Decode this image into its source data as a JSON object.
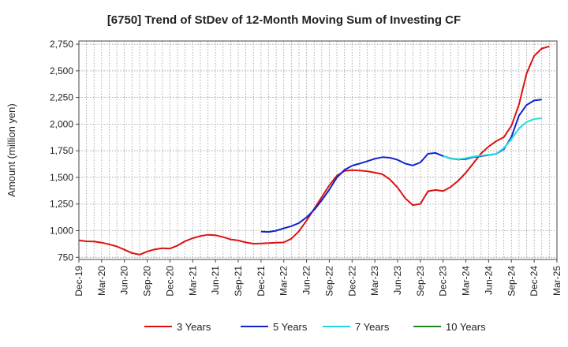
{
  "chart_data": {
    "type": "line",
    "title": "[6750]  Trend of StDev of 12-Month Moving Sum of Investing CF",
    "xlabel": "",
    "ylabel": "Amount (million yen)",
    "ylim": [
      730,
      2780
    ],
    "yticks": [
      750,
      1000,
      1250,
      1500,
      1750,
      2000,
      2250,
      2500,
      2750
    ],
    "ytick_labels": [
      "750",
      "1,000",
      "1,250",
      "1,500",
      "1,750",
      "2,000",
      "2,250",
      "2,500",
      "2,750"
    ],
    "xticks": [
      "Dec-19",
      "Mar-20",
      "Jun-20",
      "Sep-20",
      "Dec-20",
      "Mar-21",
      "Jun-21",
      "Sep-21",
      "Dec-21",
      "Mar-22",
      "Jun-22",
      "Sep-22",
      "Dec-22",
      "Mar-23",
      "Jun-23",
      "Sep-23",
      "Dec-23",
      "Mar-24",
      "Jun-24",
      "Sep-24",
      "Dec-24",
      "Mar-25"
    ],
    "grid": true,
    "legend_position": "bottom",
    "series": [
      {
        "name": "3 Years",
        "color": "#dd1111",
        "start_index": 0,
        "values": [
          910,
          900,
          898,
          888,
          872,
          852,
          822,
          790,
          775,
          805,
          825,
          835,
          832,
          860,
          902,
          930,
          950,
          962,
          958,
          940,
          918,
          908,
          890,
          878,
          880,
          884,
          888,
          890,
          925,
          995,
          1095,
          1205,
          1315,
          1425,
          1515,
          1560,
          1568,
          1565,
          1558,
          1545,
          1530,
          1480,
          1405,
          1305,
          1240,
          1252,
          1370,
          1382,
          1372,
          1410,
          1470,
          1545,
          1635,
          1725,
          1790,
          1840,
          1878,
          1985,
          2185,
          2475,
          2640,
          2710,
          2730
        ]
      },
      {
        "name": "5 Years",
        "color": "#1122cc",
        "start_index": 24,
        "values": [
          992,
          988,
          1000,
          1022,
          1042,
          1072,
          1125,
          1195,
          1285,
          1385,
          1500,
          1570,
          1610,
          1630,
          1652,
          1675,
          1690,
          1685,
          1665,
          1630,
          1612,
          1640,
          1722,
          1730,
          1700,
          1678,
          1668,
          1673,
          1690,
          1700,
          1710,
          1720,
          1765,
          1880,
          2080,
          2180,
          2222,
          2230
        ]
      },
      {
        "name": "7 Years",
        "color": "#22dddd",
        "start_index": 48,
        "values": [
          1700,
          1680,
          1670,
          1680,
          1695,
          1705,
          1712,
          1720,
          1775,
          1860,
          1960,
          2020,
          2048,
          2055
        ]
      },
      {
        "name": "10 Years",
        "color": "#228822",
        "start_index": 0,
        "values": []
      }
    ]
  }
}
